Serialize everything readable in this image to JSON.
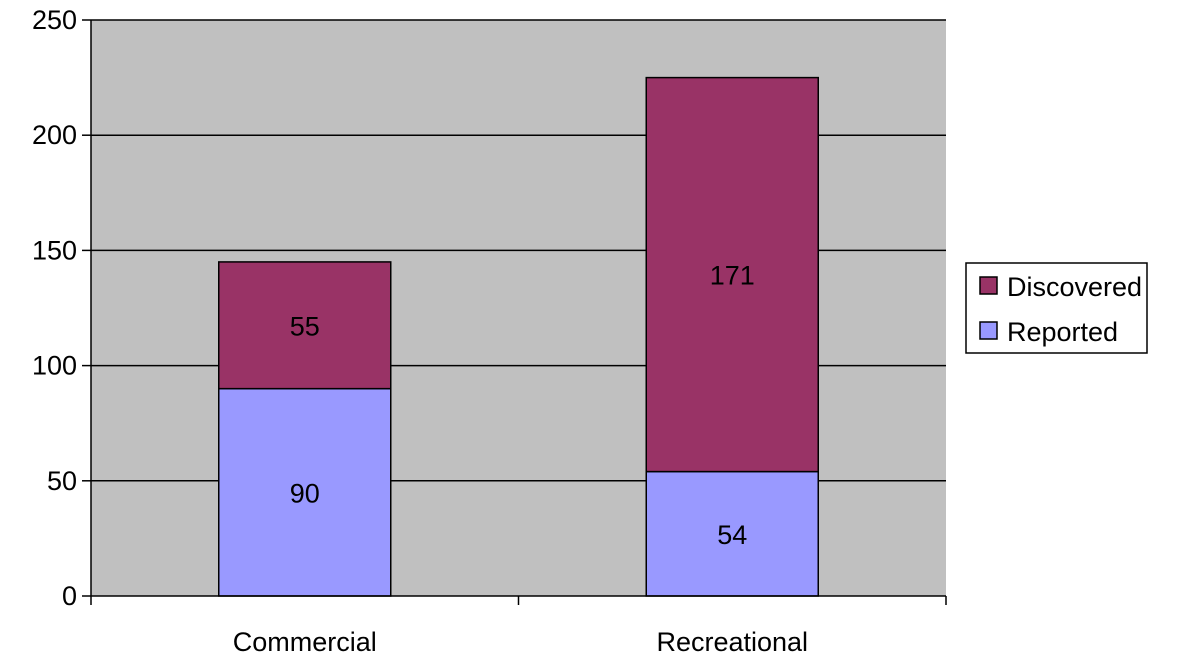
{
  "chart_data": {
    "type": "bar",
    "stacked": true,
    "title": "",
    "xlabel": "",
    "ylabel": "",
    "categories": [
      "Commercial",
      "Recreational"
    ],
    "series": [
      {
        "name": "Reported",
        "values": [
          90,
          54
        ],
        "color": "#9999ff"
      },
      {
        "name": "Discovered",
        "values": [
          55,
          171
        ],
        "color": "#993366"
      }
    ],
    "ylim": [
      0,
      250
    ],
    "y_ticks": [
      "0",
      "50",
      "100",
      "150",
      "200",
      "250"
    ],
    "grid": true,
    "plot_background": "#c0c0c0",
    "legend_position": "right",
    "legend_order": [
      "Discovered",
      "Reported"
    ]
  }
}
